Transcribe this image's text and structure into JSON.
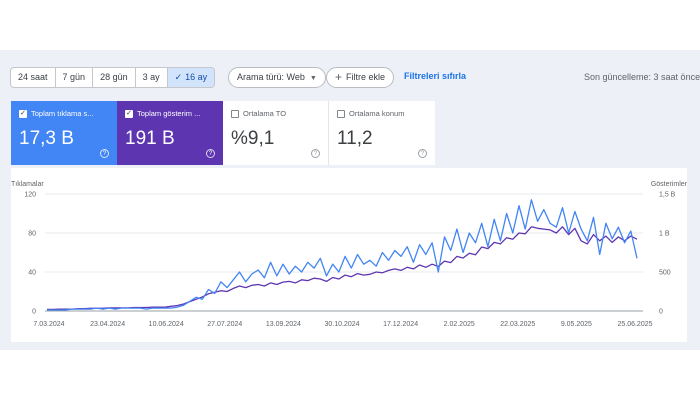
{
  "date_ranges": [
    {
      "label": "24 saat",
      "active": false
    },
    {
      "label": "7 gün",
      "active": false
    },
    {
      "label": "28 gün",
      "active": false
    },
    {
      "label": "3 ay",
      "active": false
    },
    {
      "label": "16 ay",
      "active": true
    }
  ],
  "search_type": {
    "label": "Arama türü: Web"
  },
  "filter": {
    "add_label": "Filtre ekle",
    "reset_label": "Filtreleri sıfırla"
  },
  "last_update": "Son güncelleme: 3 saat önce",
  "metrics": [
    {
      "label": "Toplam tıklama s...",
      "value": "17,3 B",
      "selected": true,
      "color": "#4285f4"
    },
    {
      "label": "Toplam gösterim ...",
      "value": "191 B",
      "selected": true,
      "color": "#5e35b1"
    },
    {
      "label": "Ortalama TO",
      "value": "%9,1",
      "selected": false
    },
    {
      "label": "Ortalama konum",
      "value": "11,2",
      "selected": false
    }
  ],
  "icons": {
    "check": "check-icon",
    "plus": "plus-icon",
    "caret": "caret-down-icon",
    "help": "help-icon"
  },
  "chart_data": {
    "type": "line",
    "left_axis": {
      "label": "Tıklamalar",
      "ticks": [
        "0",
        "40",
        "80",
        "120"
      ],
      "range": [
        0,
        120
      ]
    },
    "right_axis": {
      "label": "Gösterimler",
      "ticks": [
        "0",
        "500",
        "1 B",
        "1,5 B"
      ],
      "range": [
        0,
        1500
      ]
    },
    "x_ticks": [
      "7.03.2024",
      "23.04.2024",
      "10.06.2024",
      "27.07.2024",
      "13.09.2024",
      "30.10.2024",
      "17.12.2024",
      "2.02.2025",
      "22.03.2025",
      "9.05.2025",
      "25.06.2025"
    ],
    "grid": true,
    "series": [
      {
        "name": "Toplam tıklama sayısı",
        "color": "#4285f4",
        "axis": "left",
        "values": [
          1,
          1,
          1,
          1,
          2,
          2,
          2,
          2,
          3,
          2,
          3,
          2,
          3,
          3,
          3,
          3,
          2,
          3,
          3,
          3,
          3,
          4,
          6,
          10,
          14,
          12,
          22,
          18,
          30,
          24,
          32,
          40,
          30,
          38,
          42,
          34,
          50,
          36,
          48,
          38,
          46,
          40,
          50,
          44,
          54,
          36,
          48,
          40,
          56,
          44,
          58,
          48,
          52,
          46,
          60,
          52,
          62,
          56,
          66,
          50,
          68,
          58,
          70,
          40,
          76,
          62,
          84,
          60,
          80,
          70,
          90,
          66,
          94,
          72,
          100,
          80,
          108,
          84,
          114,
          92,
          104,
          90,
          86,
          106,
          80,
          102,
          84,
          72,
          96,
          58,
          90,
          74,
          86,
          70,
          82,
          54
        ]
      },
      {
        "name": "Toplam gösterim sayısı",
        "color": "#5e35b1",
        "axis": "right",
        "values": [
          20,
          20,
          25,
          25,
          25,
          30,
          30,
          35,
          35,
          35,
          40,
          40,
          40,
          40,
          45,
          45,
          45,
          50,
          50,
          50,
          60,
          70,
          90,
          120,
          150,
          180,
          220,
          240,
          260,
          250,
          290,
          320,
          300,
          330,
          340,
          320,
          360,
          340,
          370,
          380,
          360,
          400,
          390,
          420,
          410,
          380,
          430,
          410,
          460,
          440,
          480,
          460,
          470,
          500,
          490,
          520,
          540,
          520,
          560,
          540,
          590,
          560,
          600,
          570,
          640,
          620,
          700,
          680,
          740,
          720,
          820,
          800,
          880,
          860,
          940,
          920,
          1000,
          990,
          1080,
          1060,
          1050,
          1040,
          1000,
          1080,
          980,
          1060,
          900,
          860,
          980,
          900,
          960,
          880,
          950,
          900,
          960,
          920
        ]
      }
    ]
  }
}
